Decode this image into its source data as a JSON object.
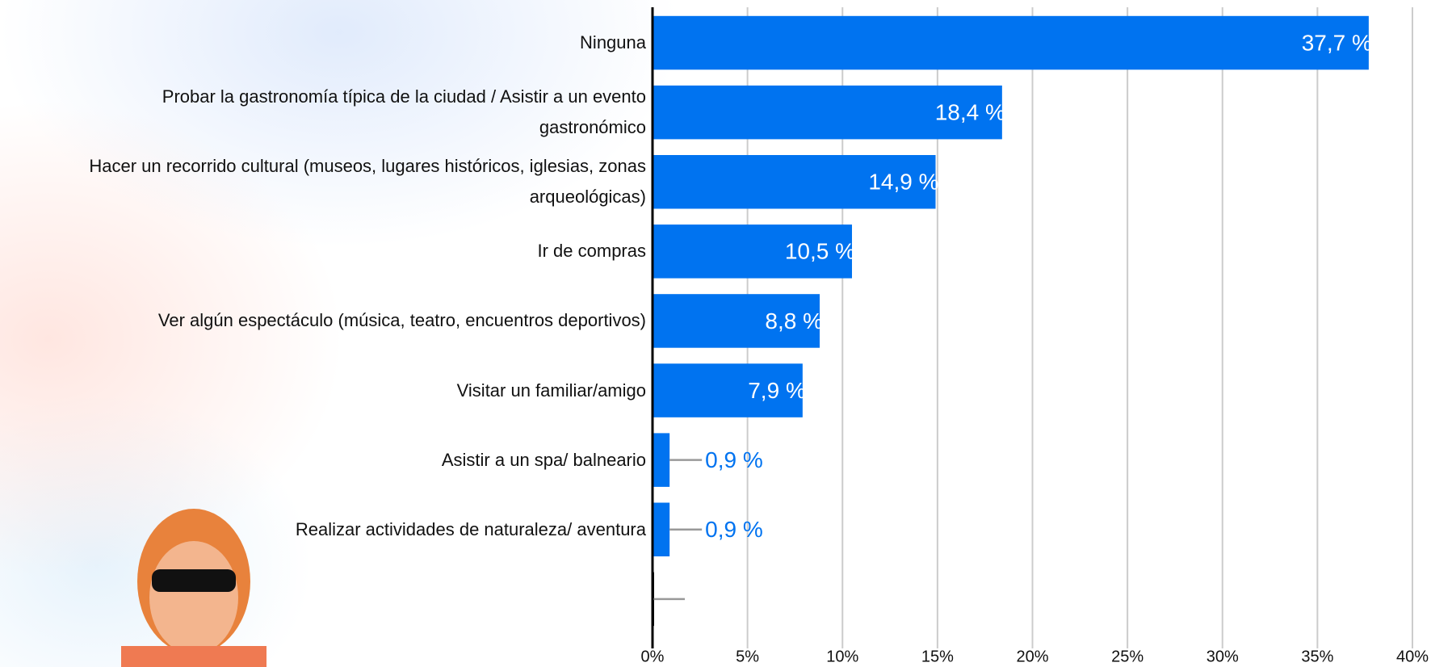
{
  "chart_data": {
    "type": "bar",
    "orientation": "horizontal",
    "categories": [
      "Ninguna",
      "Probar la gastronomía típica de la ciudad / Asistir a un evento gastronómico",
      "Hacer un recorrido cultural (museos, lugares históricos, iglesias, zonas arqueológicas)",
      "Ir de compras",
      "Ver algún espectáculo (música, teatro, encuentros deportivos)",
      "Visitar un familiar/amigo",
      "Asistir a un spa/ balneario",
      "Realizar actividades de naturaleza/ aventura",
      null
    ],
    "values": [
      37.7,
      18.4,
      14.9,
      10.5,
      8.8,
      7.9,
      0.9,
      0.9,
      0
    ],
    "value_labels": [
      "37,7 %",
      "18,4 %",
      "14,9 %",
      "10,5 %",
      "8,8 %",
      "7,9 %",
      "0,9 %",
      "0,9 %",
      null
    ],
    "color": "#0073f0",
    "xlim": [
      0,
      40
    ],
    "xticks": [
      {
        "value": 0,
        "label": "0%"
      },
      {
        "value": 5,
        "label": "5%"
      },
      {
        "value": 10,
        "label": "10%"
      },
      {
        "value": 15,
        "label": "15%"
      },
      {
        "value": 20,
        "label": "20%"
      },
      {
        "value": 25,
        "label": "25%"
      },
      {
        "value": 30,
        "label": "30%"
      },
      {
        "value": 35,
        "label": "35%"
      },
      {
        "value": 40,
        "label": "40%"
      }
    ],
    "grid": true
  }
}
